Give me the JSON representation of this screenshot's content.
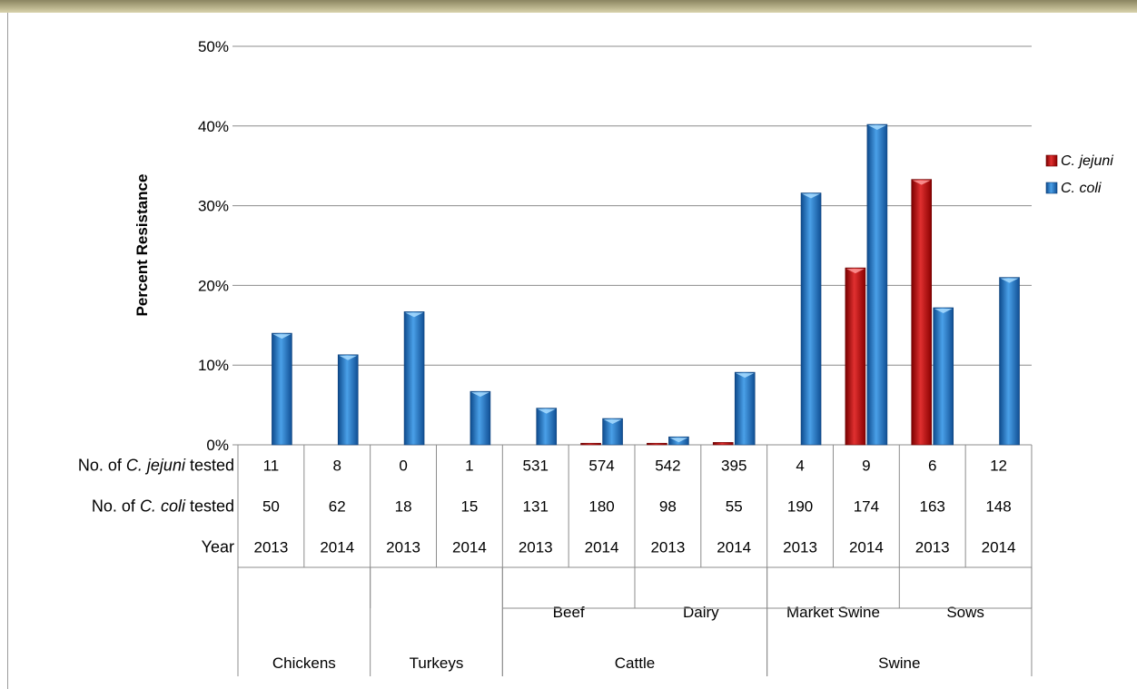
{
  "chart_data": {
    "type": "bar",
    "title": "",
    "ylabel": "Percent Resistance",
    "ylim": [
      0,
      50
    ],
    "y_ticks": [
      0,
      10,
      20,
      30,
      40,
      50
    ],
    "y_tick_labels": [
      "0%",
      "10%",
      "20%",
      "30%",
      "40%",
      "50%"
    ],
    "grid": true,
    "legend_position": "right",
    "categories": [
      {
        "year": "2013",
        "subgroup": "",
        "group": "Chickens"
      },
      {
        "year": "2014",
        "subgroup": "",
        "group": "Chickens"
      },
      {
        "year": "2013",
        "subgroup": "",
        "group": "Turkeys"
      },
      {
        "year": "2014",
        "subgroup": "",
        "group": "Turkeys"
      },
      {
        "year": "2013",
        "subgroup": "Beef",
        "group": "Cattle"
      },
      {
        "year": "2014",
        "subgroup": "Beef",
        "group": "Cattle"
      },
      {
        "year": "2013",
        "subgroup": "Dairy",
        "group": "Cattle"
      },
      {
        "year": "2014",
        "subgroup": "Dairy",
        "group": "Cattle"
      },
      {
        "year": "2013",
        "subgroup": "Market Swine",
        "group": "Swine"
      },
      {
        "year": "2014",
        "subgroup": "Market Swine",
        "group": "Swine"
      },
      {
        "year": "2013",
        "subgroup": "Sows",
        "group": "Swine"
      },
      {
        "year": "2014",
        "subgroup": "Sows",
        "group": "Swine"
      }
    ],
    "series": [
      {
        "name": "C. jejuni",
        "color": "#c00000",
        "values": [
          0,
          0,
          0,
          0,
          0,
          0.2,
          0.2,
          0.3,
          0,
          22.2,
          33.3,
          0
        ]
      },
      {
        "name": "C. coli",
        "color": "#1f6fbf",
        "values": [
          14,
          11.3,
          16.7,
          6.7,
          4.6,
          3.3,
          1.0,
          9.1,
          31.6,
          40.2,
          17.2,
          21.0
        ]
      }
    ],
    "subgroups": [
      {
        "label": "Beef",
        "start": 4,
        "end": 5
      },
      {
        "label": "Dairy",
        "start": 6,
        "end": 7
      },
      {
        "label": "Market Swine",
        "start": 8,
        "end": 9
      },
      {
        "label": "Sows",
        "start": 10,
        "end": 11
      }
    ],
    "groups": [
      {
        "label": "Chickens",
        "start": 0,
        "end": 1
      },
      {
        "label": "Turkeys",
        "start": 2,
        "end": 3
      },
      {
        "label": "Cattle",
        "start": 4,
        "end": 7
      },
      {
        "label": "Swine",
        "start": 8,
        "end": 11
      }
    ],
    "table": {
      "rows": [
        {
          "label_parts": [
            "No. of ",
            "C. jejuni",
            " tested"
          ],
          "values": [
            "11",
            "8",
            "0",
            "1",
            "531",
            "574",
            "542",
            "395",
            "4",
            "9",
            "6",
            "12"
          ]
        },
        {
          "label_parts": [
            "No. of ",
            "C. coli",
            " tested"
          ],
          "values": [
            "50",
            "62",
            "18",
            "15",
            "131",
            "180",
            "98",
            "55",
            "190",
            "174",
            "163",
            "148"
          ]
        },
        {
          "label_parts": [
            "Year",
            "",
            ""
          ],
          "values": [
            "2013",
            "2014",
            "2013",
            "2014",
            "2013",
            "2014",
            "2013",
            "2014",
            "2013",
            "2014",
            "2013",
            "2014"
          ]
        }
      ]
    }
  }
}
